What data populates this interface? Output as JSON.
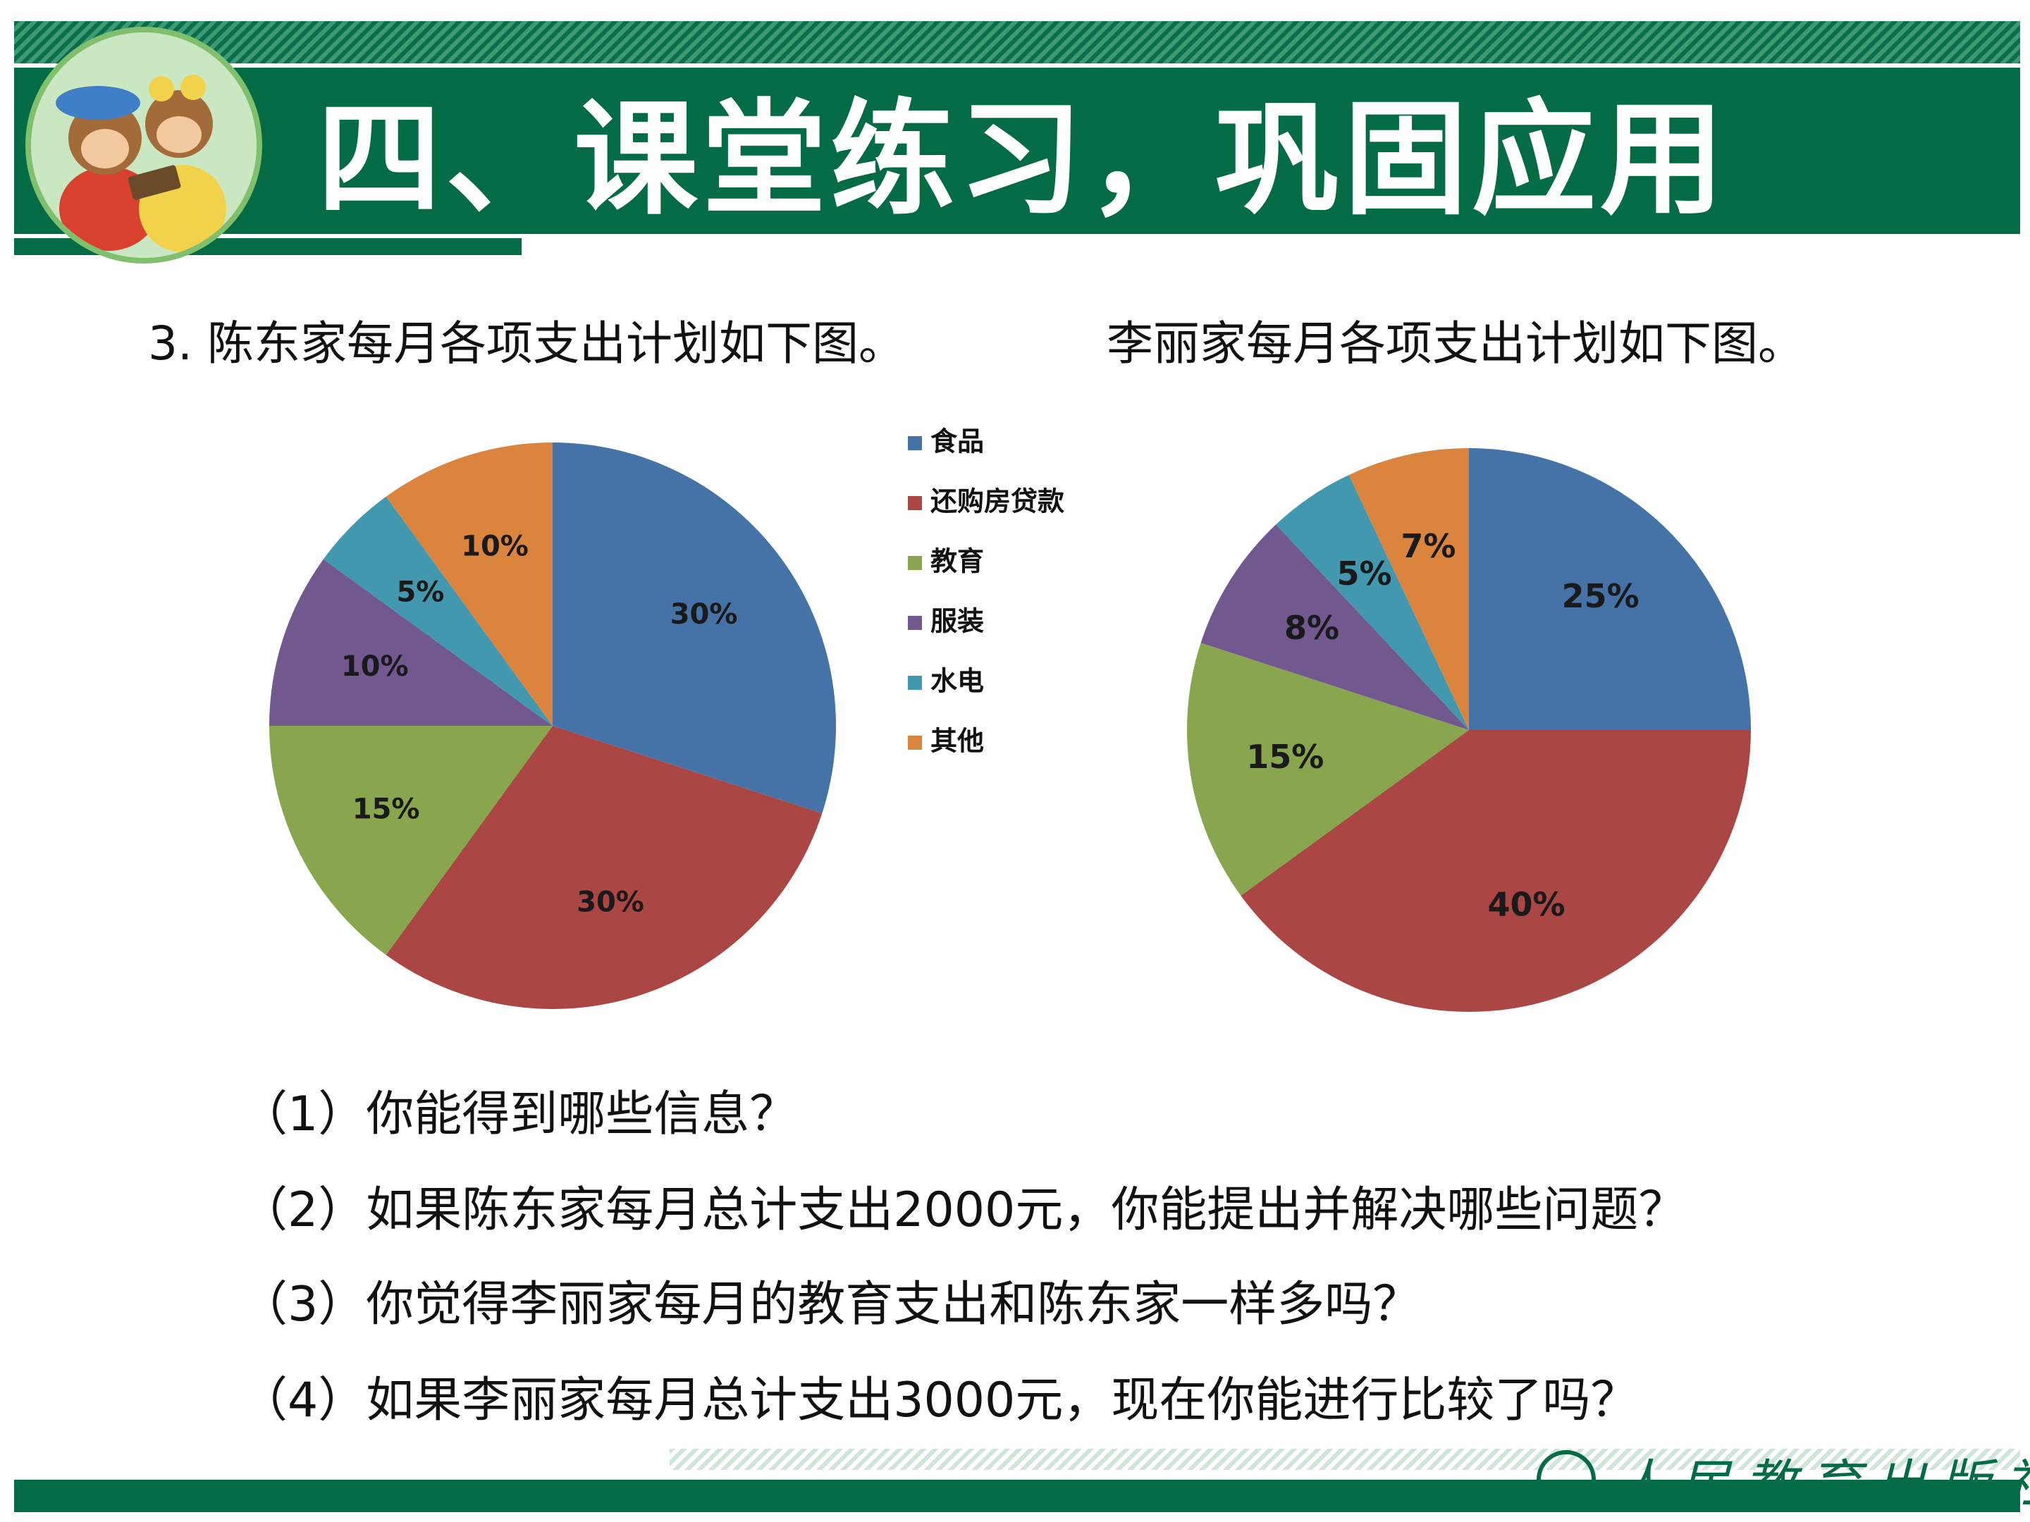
{
  "header": {
    "title": "四、课堂练习，巩固应用"
  },
  "captions": {
    "left": "3. 陈东家每月各项支出计划如下图。",
    "right": "李丽家每月各项支出计划如下图。"
  },
  "chart_data": [
    {
      "type": "pie",
      "title": "",
      "categories": [
        "食品",
        "还购房贷款",
        "教育",
        "服装",
        "水电",
        "其他"
      ],
      "values": [
        30,
        30,
        15,
        10,
        5,
        10
      ],
      "data_labels": [
        "30%",
        "30%",
        "15%",
        "10%",
        "5%",
        "10%"
      ],
      "colors": [
        "#4572a7",
        "#aa4643",
        "#89a54e",
        "#71588f",
        "#4198af",
        "#db843d"
      ],
      "legend": {
        "placement": "right",
        "entries": [
          "食品",
          "还购房贷款",
          "教育",
          "服装",
          "水电",
          "其他"
        ]
      }
    },
    {
      "type": "pie",
      "title": "",
      "categories": [
        "食品",
        "还购房贷款",
        "教育",
        "服装",
        "水电",
        "其他"
      ],
      "values": [
        25,
        40,
        15,
        8,
        5,
        7
      ],
      "data_labels": [
        "25%",
        "40%",
        "15%",
        "8%",
        "5%",
        "7%"
      ],
      "colors": [
        "#4572a7",
        "#aa4643",
        "#89a54e",
        "#71588f",
        "#4198af",
        "#db843d"
      ]
    }
  ],
  "questions": [
    "（1）你能得到哪些信息？",
    "（2）如果陈东家每月总计支出2000元，你能提出并解决哪些问题？",
    "（3）你觉得李丽家每月的教育支出和陈东家一样多吗？",
    "（4）如果李丽家每月总计支出3000元，现在你能进行比较了吗？"
  ],
  "footer": {
    "publisher": "人民教育出版社"
  }
}
